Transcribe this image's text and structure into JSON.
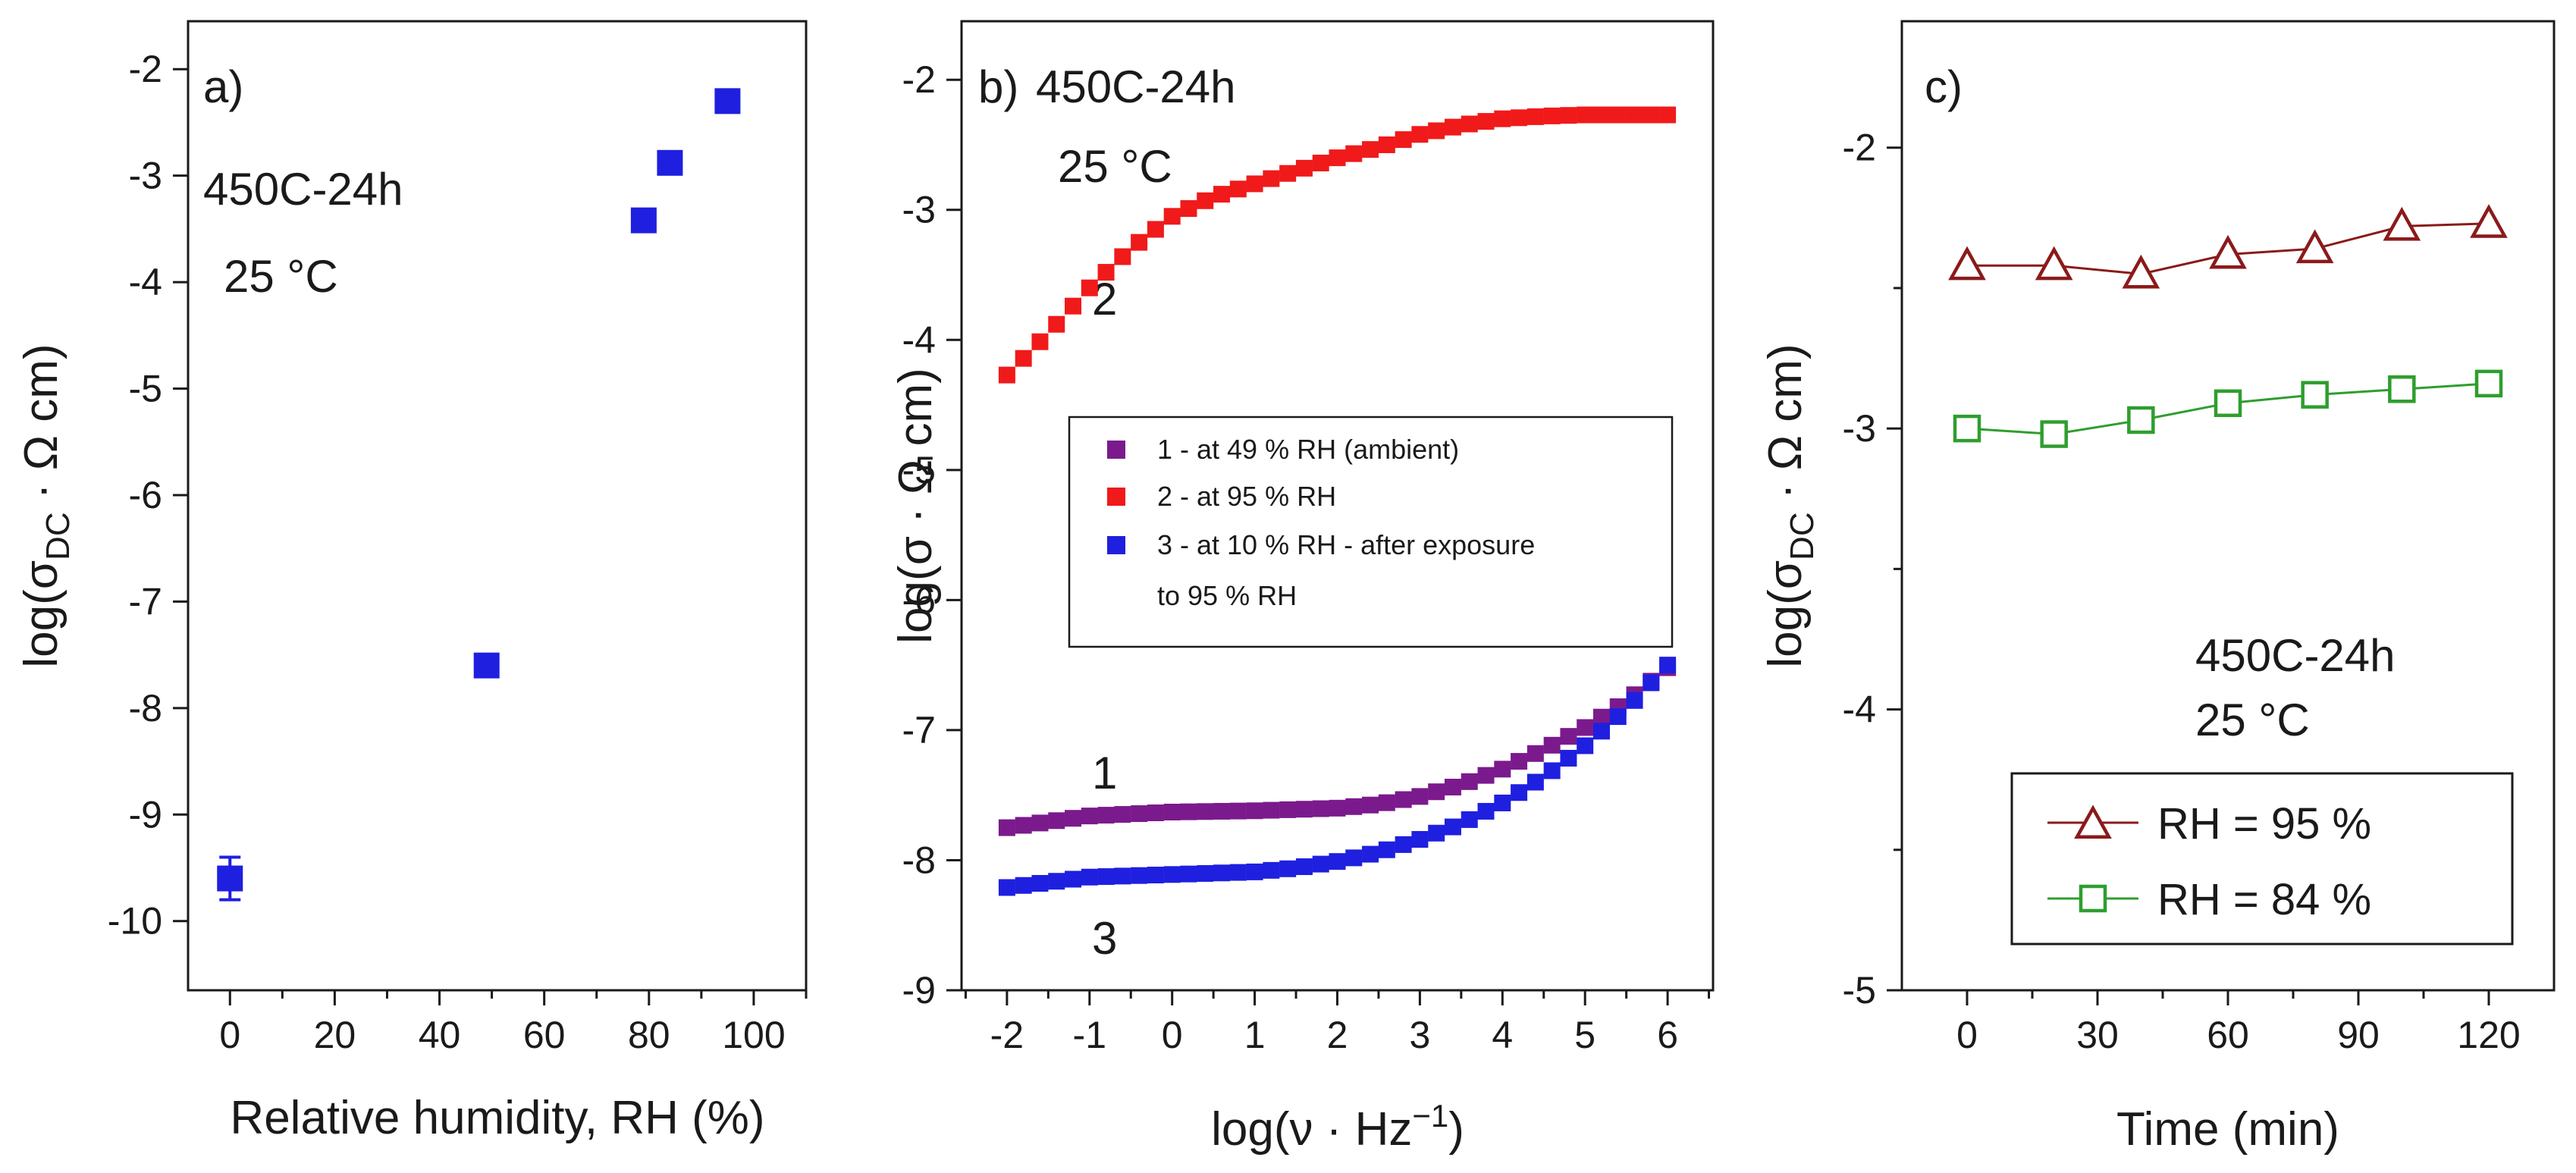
{
  "chart_data": [
    {
      "type": "scatter",
      "panel_label": "a)",
      "annotations": [
        "450C-24h",
        "25 °C"
      ],
      "xlabel": "Relative humidity, RH (%)",
      "ylabel_parts": {
        "prefix": "log(σ",
        "sub": "DC",
        "suffix": " · Ω cm)"
      },
      "xlim": [
        -8,
        110
      ],
      "ylim": [
        -10.65,
        -1.55
      ],
      "xticks": [
        0,
        20,
        40,
        60,
        80,
        100
      ],
      "yticks": [
        -2,
        -3,
        -4,
        -5,
        -6,
        -7,
        -8,
        -9,
        -10
      ],
      "grid": false,
      "color": "#1f1fe0",
      "x": [
        0,
        49,
        79,
        84,
        95
      ],
      "y": [
        -9.6,
        -7.6,
        -3.42,
        -2.88,
        -2.3
      ],
      "yerr": [
        0.2,
        0.1,
        0.05,
        0.05,
        0.05
      ]
    },
    {
      "type": "scatter",
      "panel_label": "b)",
      "annotations": [
        "450C-24h",
        "25 °C",
        "2",
        "1",
        "3"
      ],
      "xlabel_parts": {
        "prefix": "log(ν · Hz",
        "sup": "−1",
        "suffix": ")"
      },
      "ylabel": "log(σ · Ω cm)",
      "xlim": [
        -2.55,
        6.55
      ],
      "ylim": [
        -9,
        -1.55
      ],
      "xticks": [
        -2,
        -1,
        0,
        1,
        2,
        3,
        4,
        5,
        6
      ],
      "yticks": [
        -2,
        -3,
        -4,
        -5,
        -6,
        -7,
        -8,
        -9
      ],
      "grid": false,
      "legend": {
        "position": "center-left",
        "entries": [
          "1 - at 49 % RH (ambient)",
          "2 - at 95 % RH",
          "3 - at 10 % RH - after exposure",
          "to 95 % RH"
        ]
      },
      "series": [
        {
          "name": "1 - at 49 % RH (ambient)",
          "color": "#7b1a8c",
          "x": [
            -2,
            -1,
            0,
            1,
            2,
            2.5,
            3,
            3.5,
            4,
            4.5,
            5,
            5.5,
            6
          ],
          "y": [
            -7.75,
            -7.66,
            -7.63,
            -7.62,
            -7.6,
            -7.57,
            -7.51,
            -7.42,
            -7.3,
            -7.15,
            -6.98,
            -6.78,
            -6.52
          ]
        },
        {
          "name": "2 - at 95 % RH",
          "color": "#f01a1a",
          "x": [
            -2,
            -1.5,
            -1,
            -0.5,
            0,
            0.5,
            1,
            1.5,
            2,
            2.5,
            3,
            3.5,
            4,
            4.5,
            5,
            5.5,
            6
          ],
          "y": [
            -4.27,
            -3.95,
            -3.6,
            -3.3,
            -3.05,
            -2.9,
            -2.8,
            -2.7,
            -2.6,
            -2.52,
            -2.42,
            -2.35,
            -2.3,
            -2.28,
            -2.27,
            -2.27,
            -2.27
          ]
        },
        {
          "name": "3 - at 10 % RH - after exposure to 95 % RH",
          "color": "#1f1fe0",
          "x": [
            -2,
            -1,
            0,
            1,
            1.5,
            2,
            2.5,
            3,
            3.5,
            4,
            4.5,
            5,
            5.5,
            6
          ],
          "y": [
            -8.21,
            -8.13,
            -8.11,
            -8.09,
            -8.06,
            -8.01,
            -7.94,
            -7.84,
            -7.72,
            -7.56,
            -7.36,
            -7.12,
            -6.84,
            -6.5
          ]
        }
      ]
    },
    {
      "type": "line",
      "panel_label": "c)",
      "annotations": [
        "450C-24h",
        "25 °C"
      ],
      "xlabel": "Time (min)",
      "ylabel_parts": {
        "prefix": "log(σ",
        "sub": "DC",
        "suffix": " · Ω cm)"
      },
      "xlim": [
        -15,
        135
      ],
      "ylim": [
        -5,
        -1.55
      ],
      "xticks": [
        0,
        30,
        60,
        90,
        120
      ],
      "yticks": [
        -2,
        -3,
        -4,
        -5
      ],
      "grid": false,
      "legend": {
        "position": "bottom-right",
        "entries": [
          "RH = 95 %",
          "RH = 84 %"
        ]
      },
      "series": [
        {
          "name": "RH = 95 %",
          "marker": "triangle",
          "color": "#8b1a1a",
          "x": [
            0,
            20,
            40,
            60,
            80,
            100,
            120
          ],
          "y": [
            -2.42,
            -2.42,
            -2.45,
            -2.38,
            -2.36,
            -2.28,
            -2.27
          ]
        },
        {
          "name": "RH = 84 %",
          "marker": "square",
          "color": "#2e9e2e",
          "x": [
            0,
            20,
            40,
            60,
            80,
            100,
            120
          ],
          "y": [
            -3.0,
            -3.02,
            -2.97,
            -2.91,
            -2.88,
            -2.86,
            -2.84
          ]
        }
      ]
    }
  ]
}
